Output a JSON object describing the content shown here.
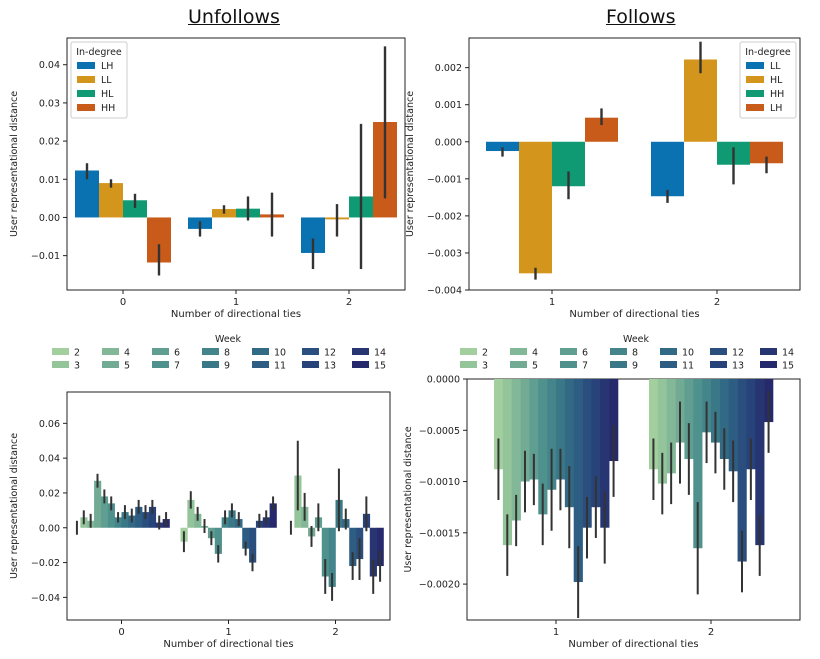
{
  "headers": {
    "left": "Unfollows",
    "right": "Follows"
  },
  "colors": {
    "LH": "#0b72b2",
    "LL": "#d4951c",
    "HL": "#0f9a73",
    "HH": "#c85b1a",
    "axis": "#222222",
    "errbar": "#333333"
  },
  "chart_data": [
    {
      "id": "unfollows-indegree",
      "type": "bar",
      "title": "",
      "xlabel": "Number of directional ties",
      "ylabel": "User representational distance",
      "categories": [
        "0",
        "1",
        "2"
      ],
      "ylim": [
        -0.019,
        0.047
      ],
      "yticks": [
        -0.01,
        0.0,
        0.01,
        0.02,
        0.03,
        0.04
      ],
      "ytick_labels": [
        "−0.01",
        "0.00",
        "0.01",
        "0.02",
        "0.03",
        "0.04"
      ],
      "legend": {
        "title": "In-degree",
        "placement": "top-left"
      },
      "series": [
        {
          "name": "LH",
          "color": "#0b72b2",
          "values": [
            0.0123,
            -0.003,
            -0.0093
          ],
          "err_low": [
            0.01,
            -0.005,
            -0.0135
          ],
          "err_high": [
            0.0142,
            -0.001,
            -0.0055
          ]
        },
        {
          "name": "LL",
          "color": "#d4951c",
          "values": [
            0.009,
            0.0022,
            -0.0005
          ],
          "err_low": [
            0.0078,
            0.001,
            -0.005
          ],
          "err_high": [
            0.01,
            0.0032,
            0.0035
          ]
        },
        {
          "name": "HL",
          "color": "#0f9a73",
          "values": [
            0.0045,
            0.0023,
            0.0055
          ],
          "err_low": [
            0.0025,
            -0.0008,
            -0.0135
          ],
          "err_high": [
            0.0062,
            0.0055,
            0.0245
          ]
        },
        {
          "name": "HH",
          "color": "#c85b1a",
          "values": [
            -0.0118,
            0.0008,
            0.025
          ],
          "err_low": [
            -0.0152,
            -0.005,
            0.005
          ],
          "err_high": [
            -0.007,
            0.0065,
            0.0448
          ]
        }
      ]
    },
    {
      "id": "follows-indegree",
      "type": "bar",
      "title": "",
      "xlabel": "Number of directional ties",
      "ylabel": "User representational distance",
      "categories": [
        "1",
        "2"
      ],
      "ylim": [
        -0.004,
        0.0028
      ],
      "yticks": [
        -0.004,
        -0.003,
        -0.002,
        -0.001,
        0.0,
        0.001,
        0.002
      ],
      "ytick_labels": [
        "−0.004",
        "−0.003",
        "−0.002",
        "−0.001",
        "0.000",
        "0.001",
        "0.002"
      ],
      "legend": {
        "title": "In-degree",
        "placement": "top-right"
      },
      "series": [
        {
          "name": "LL",
          "color": "#0b72b2",
          "values": [
            -0.00025,
            -0.00147
          ],
          "err_low": [
            -0.0004,
            -0.00165
          ],
          "err_high": [
            -0.00015,
            -0.0013
          ]
        },
        {
          "name": "HL",
          "color": "#d4951c",
          "values": [
            -0.00355,
            0.00222
          ],
          "err_low": [
            -0.00372,
            0.00185
          ],
          "err_high": [
            -0.0034,
            0.0027
          ]
        },
        {
          "name": "HH",
          "color": "#0f9a73",
          "values": [
            -0.0012,
            -0.00062
          ],
          "err_low": [
            -0.00155,
            -0.00115
          ],
          "err_high": [
            -0.0008,
            -0.00015
          ]
        },
        {
          "name": "LH",
          "color": "#c85b1a",
          "values": [
            0.00065,
            -0.00058
          ],
          "err_low": [
            0.00045,
            -0.00085
          ],
          "err_high": [
            0.0009,
            -0.0004
          ]
        }
      ]
    },
    {
      "id": "unfollows-week",
      "type": "bar",
      "title": "",
      "xlabel": "Number of directional ties",
      "ylabel": "User representational distance",
      "categories": [
        "0",
        "1",
        "2"
      ],
      "ylim": [
        -0.053,
        0.078
      ],
      "yticks": [
        -0.04,
        -0.02,
        0.0,
        0.02,
        0.04,
        0.06
      ],
      "ytick_labels": [
        "−0.04",
        "−0.02",
        "0.00",
        "0.02",
        "0.04",
        "0.06"
      ],
      "legend": {
        "title": "Week",
        "placement": "top"
      },
      "series_names": [
        "2",
        "3",
        "4",
        "5",
        "6",
        "7",
        "8",
        "9",
        "10",
        "11",
        "12",
        "13",
        "14",
        "15"
      ],
      "series_colors": [
        "#a2cf9d",
        "#93c49a",
        "#82b797",
        "#72aa94",
        "#5f9e90",
        "#4f918d",
        "#43858b",
        "#3a7888",
        "#326a85",
        "#2d5d82",
        "#2a4f7e",
        "#28427a",
        "#273573",
        "#26296b"
      ],
      "values": [
        [
          0.0,
          -0.008,
          0.0
        ],
        [
          0.006,
          0.016,
          0.03
        ],
        [
          0.004,
          0.008,
          0.012
        ],
        [
          0.027,
          0.001,
          -0.005
        ],
        [
          0.018,
          -0.006,
          0.006
        ],
        [
          0.014,
          -0.015,
          -0.028
        ],
        [
          0.006,
          0.006,
          -0.034
        ],
        [
          0.009,
          0.01,
          0.016
        ],
        [
          0.007,
          0.005,
          0.005
        ],
        [
          0.012,
          -0.012,
          -0.022
        ],
        [
          0.009,
          -0.02,
          -0.018
        ],
        [
          0.012,
          0.004,
          0.008
        ],
        [
          0.003,
          0.006,
          -0.028
        ],
        [
          0.005,
          0.014,
          -0.022
        ]
      ],
      "err": [
        [
          0.004,
          0.006,
          0.004
        ],
        [
          0.004,
          0.005,
          0.02
        ],
        [
          0.004,
          0.004,
          0.008
        ],
        [
          0.004,
          0.004,
          0.006
        ],
        [
          0.004,
          0.004,
          0.008
        ],
        [
          0.004,
          0.005,
          0.01
        ],
        [
          0.003,
          0.004,
          0.008
        ],
        [
          0.004,
          0.004,
          0.018
        ],
        [
          0.004,
          0.004,
          0.006
        ],
        [
          0.004,
          0.004,
          0.008
        ],
        [
          0.004,
          0.005,
          0.012
        ],
        [
          0.004,
          0.004,
          0.01
        ],
        [
          0.004,
          0.004,
          0.01
        ],
        [
          0.004,
          0.004,
          0.009
        ]
      ]
    },
    {
      "id": "follows-week",
      "type": "bar",
      "title": "",
      "xlabel": "Number of directional ties",
      "ylabel": "User representational distance",
      "categories": [
        "1",
        "2"
      ],
      "ylim": [
        -0.00235,
        0.0
      ],
      "yticks": [
        -0.002,
        -0.0015,
        -0.001,
        -0.0005,
        0.0
      ],
      "ytick_labels": [
        "−0.0020",
        "−0.0015",
        "−0.0010",
        "−0.0005",
        "0.0000"
      ],
      "legend": {
        "title": "Week",
        "placement": "top"
      },
      "series_names": [
        "2",
        "3",
        "4",
        "5",
        "6",
        "7",
        "8",
        "9",
        "10",
        "11",
        "12",
        "13",
        "14",
        "15"
      ],
      "series_colors": [
        "#a2cf9d",
        "#93c49a",
        "#82b797",
        "#72aa94",
        "#5f9e90",
        "#4f918d",
        "#43858b",
        "#3a7888",
        "#326a85",
        "#2d5d82",
        "#2a4f7e",
        "#28427a",
        "#273573",
        "#26296b"
      ],
      "values": [
        [
          -0.00088,
          -0.00088
        ],
        [
          -0.00162,
          -0.00102
        ],
        [
          -0.00138,
          -0.00092
        ],
        [
          -0.001,
          -0.00062
        ],
        [
          -0.00098,
          -0.00078
        ],
        [
          -0.00132,
          -0.00165
        ],
        [
          -0.00108,
          -0.00052
        ],
        [
          -0.00098,
          -0.00062
        ],
        [
          -0.00125,
          -0.00078
        ],
        [
          -0.00198,
          -0.0009
        ],
        [
          -0.00145,
          -0.00178
        ],
        [
          -0.00125,
          -0.00088
        ],
        [
          -0.00145,
          -0.00162
        ],
        [
          -0.0008,
          -0.00042
        ]
      ],
      "err": [
        [
          0.0003,
          0.0003
        ],
        [
          0.0003,
          0.0003
        ],
        [
          0.00025,
          0.0003
        ],
        [
          0.0003,
          0.0004
        ],
        [
          0.00025,
          0.00035
        ],
        [
          0.0003,
          0.00045
        ],
        [
          0.0004,
          0.0003
        ],
        [
          0.0003,
          0.0003
        ],
        [
          0.0004,
          0.0003
        ],
        [
          0.00035,
          0.0003
        ],
        [
          0.0003,
          0.0003
        ],
        [
          0.0003,
          0.0003
        ],
        [
          0.00035,
          0.0003
        ],
        [
          0.00035,
          0.0003
        ]
      ]
    }
  ]
}
